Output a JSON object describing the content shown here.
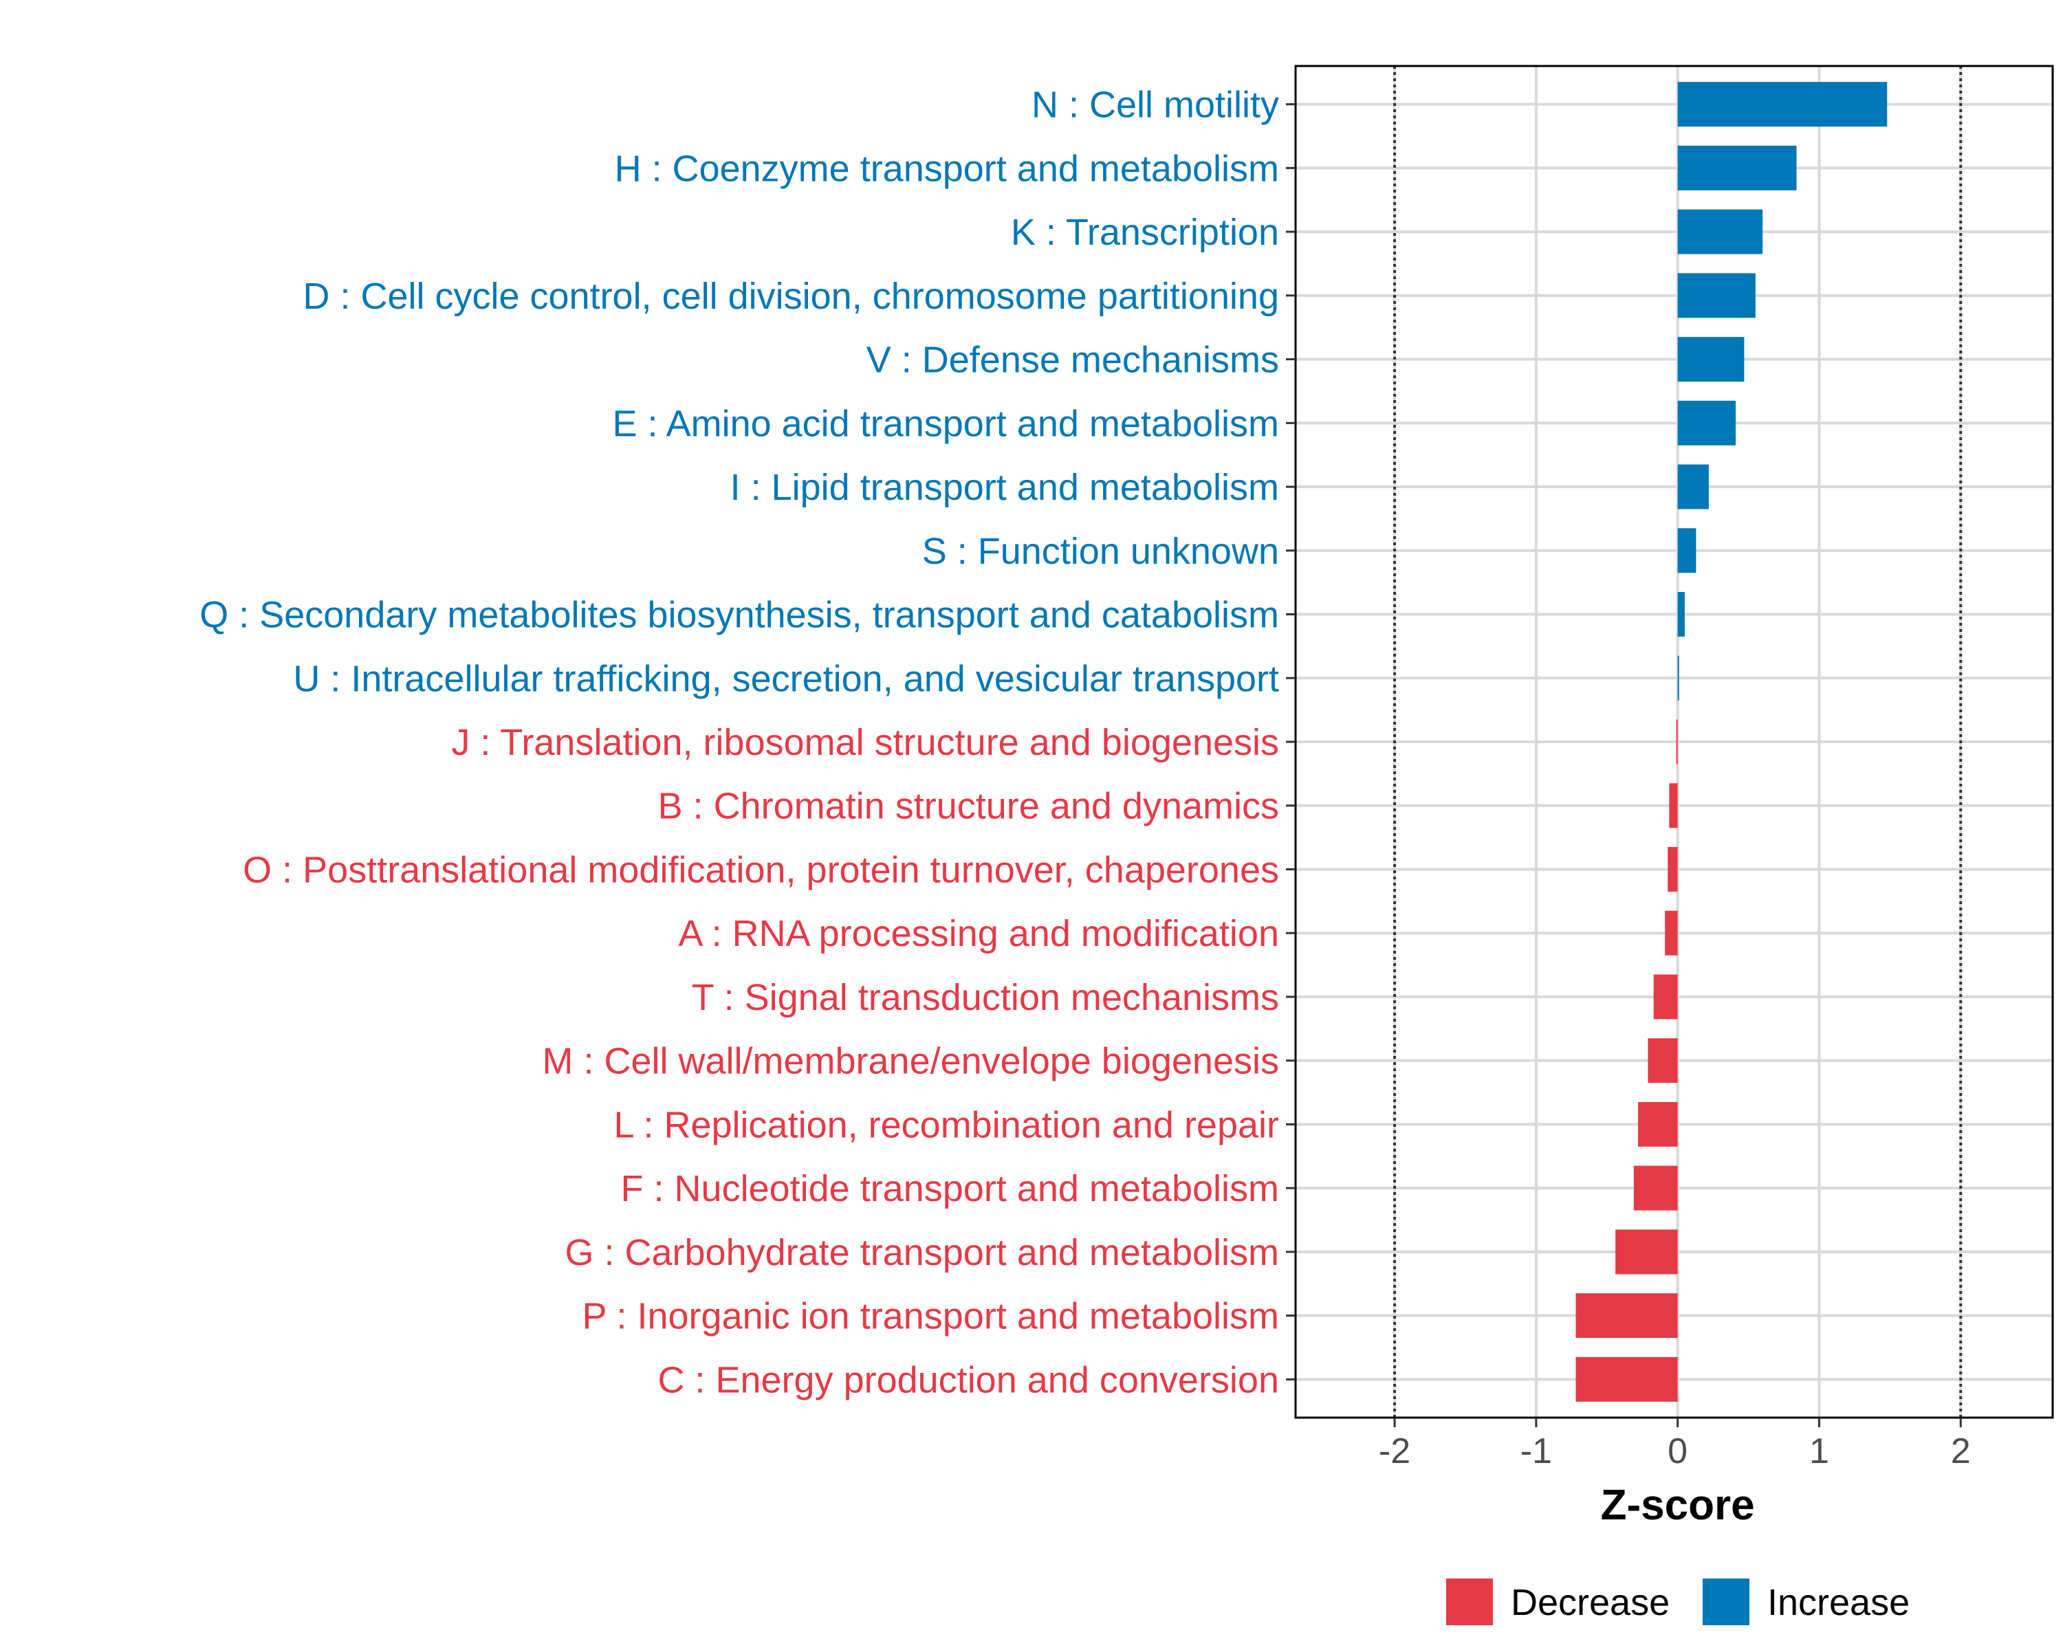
{
  "chart_data": {
    "type": "bar",
    "orientation": "horizontal",
    "title": "",
    "xlabel": "Z-score",
    "ylabel": "",
    "xlim": [
      -2.7,
      2.65
    ],
    "xticks": [
      -2,
      -1,
      0,
      1,
      2
    ],
    "xtick_labels": [
      "-2",
      "-1",
      "0",
      "1",
      "2"
    ],
    "reference_lines": [
      -2,
      2
    ],
    "grid": true,
    "colors": {
      "Decrease": "#E63946",
      "Increase": "#0077B6"
    },
    "legend": {
      "position": "bottom",
      "entries": [
        {
          "label": "Decrease",
          "color": "#E63946"
        },
        {
          "label": "Increase",
          "color": "#0077B6"
        }
      ]
    },
    "categories": [
      {
        "label": "N : Cell motility",
        "value": 1.48,
        "direction": "Increase"
      },
      {
        "label": "H : Coenzyme transport and metabolism",
        "value": 0.84,
        "direction": "Increase"
      },
      {
        "label": "K : Transcription",
        "value": 0.6,
        "direction": "Increase"
      },
      {
        "label": "D : Cell cycle control, cell division, chromosome partitioning",
        "value": 0.55,
        "direction": "Increase"
      },
      {
        "label": "V : Defense mechanisms",
        "value": 0.47,
        "direction": "Increase"
      },
      {
        "label": "E : Amino acid transport and metabolism",
        "value": 0.41,
        "direction": "Increase"
      },
      {
        "label": "I : Lipid transport and metabolism",
        "value": 0.22,
        "direction": "Increase"
      },
      {
        "label": "S : Function unknown",
        "value": 0.13,
        "direction": "Increase"
      },
      {
        "label": "Q : Secondary metabolites biosynthesis, transport and catabolism",
        "value": 0.05,
        "direction": "Increase"
      },
      {
        "label": "U : Intracellular trafficking, secretion, and vesicular transport",
        "value": 0.01,
        "direction": "Increase"
      },
      {
        "label": "J : Translation, ribosomal structure and biogenesis",
        "value": -0.01,
        "direction": "Decrease"
      },
      {
        "label": "B : Chromatin structure and dynamics",
        "value": -0.06,
        "direction": "Decrease"
      },
      {
        "label": "O : Posttranslational modification, protein turnover, chaperones",
        "value": -0.07,
        "direction": "Decrease"
      },
      {
        "label": "A : RNA processing and modification",
        "value": -0.09,
        "direction": "Decrease"
      },
      {
        "label": "T : Signal transduction mechanisms",
        "value": -0.17,
        "direction": "Decrease"
      },
      {
        "label": "M : Cell wall/membrane/envelope biogenesis",
        "value": -0.21,
        "direction": "Decrease"
      },
      {
        "label": "L : Replication, recombination and repair",
        "value": -0.28,
        "direction": "Decrease"
      },
      {
        "label": "F : Nucleotide transport and metabolism",
        "value": -0.31,
        "direction": "Decrease"
      },
      {
        "label": "G : Carbohydrate transport and metabolism",
        "value": -0.44,
        "direction": "Decrease"
      },
      {
        "label": "P : Inorganic ion transport and metabolism",
        "value": -0.72,
        "direction": "Decrease"
      },
      {
        "label": "C : Energy production and conversion",
        "value": -0.72,
        "direction": "Decrease"
      }
    ]
  }
}
